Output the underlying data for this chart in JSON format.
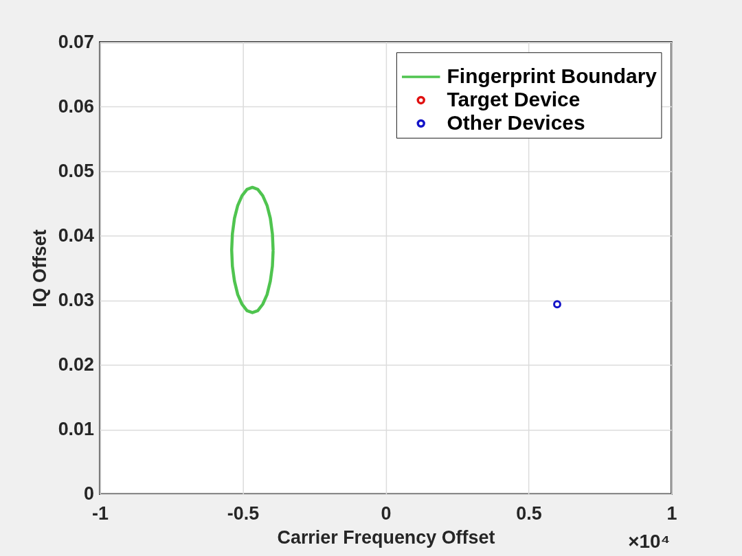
{
  "chart_data": {
    "type": "scatter",
    "xlabel": "Carrier Frequency Offset",
    "ylabel": "IQ Offset",
    "xlim": [
      -1,
      1
    ],
    "xticks": [
      -1,
      -0.5,
      0,
      0.5,
      1
    ],
    "ylim": [
      0,
      0.07
    ],
    "yticks": [
      0,
      0.01,
      0.02,
      0.03,
      0.04,
      0.05,
      0.06,
      0.07
    ],
    "grid": true,
    "legend": "top right",
    "annotations": [
      "×10⁴"
    ],
    "series": [
      {
        "name": "Fingerprint Boundary",
        "type": "line",
        "color": "#4fc44f",
        "line_style": "solid",
        "x": [
          -0.394,
          -0.3965,
          -0.4037,
          -0.4152,
          -0.4303,
          -0.4477,
          -0.4665,
          -0.4853,
          -0.5028,
          -0.5178,
          -0.5293,
          -0.5365,
          -0.539,
          -0.5365,
          -0.5293,
          -0.5178,
          -0.5028,
          -0.4853,
          -0.4665,
          -0.4477,
          -0.4303,
          -0.4152,
          -0.4037,
          -0.3965,
          -0.3941
        ],
        "values": [
          0.0378,
          0.0403,
          0.0427,
          0.0447,
          0.0462,
          0.0472,
          0.0475,
          0.0472,
          0.0462,
          0.0447,
          0.0427,
          0.0403,
          0.0378,
          0.0353,
          0.033,
          0.0309,
          0.0294,
          0.0284,
          0.0281,
          0.0284,
          0.0294,
          0.0309,
          0.033,
          0.0353,
          0.0376
        ]
      },
      {
        "name": "Target Device",
        "marker": "circle",
        "color": "#e01010",
        "values": [
          null
        ]
      },
      {
        "name": "Other Devices",
        "marker": "circle",
        "color": "#1414c8",
        "x": [
          0.6
        ],
        "values": [
          0.0294
        ]
      }
    ]
  }
}
